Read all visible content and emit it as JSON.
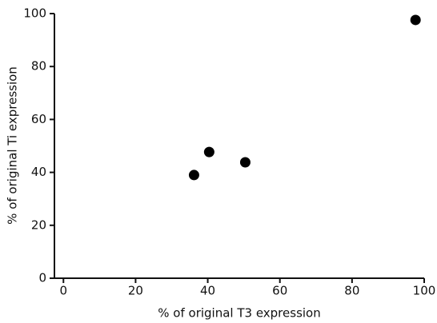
{
  "chart_data": {
    "type": "scatter",
    "x_label": "% of original T3 expression",
    "y_label": "% of original Ti expression",
    "x": [
      36.2,
      40.4,
      50.4,
      97.6
    ],
    "y": [
      39,
      47.7,
      43.8,
      97.6
    ],
    "color": "#000000",
    "xlim": [
      -2.5,
      100
    ],
    "xticks": [
      0,
      20,
      40,
      60,
      80,
      100
    ],
    "ylim": [
      0,
      100
    ],
    "yticks": [
      0,
      20,
      40,
      60,
      80,
      100
    ],
    "grid": false
  }
}
